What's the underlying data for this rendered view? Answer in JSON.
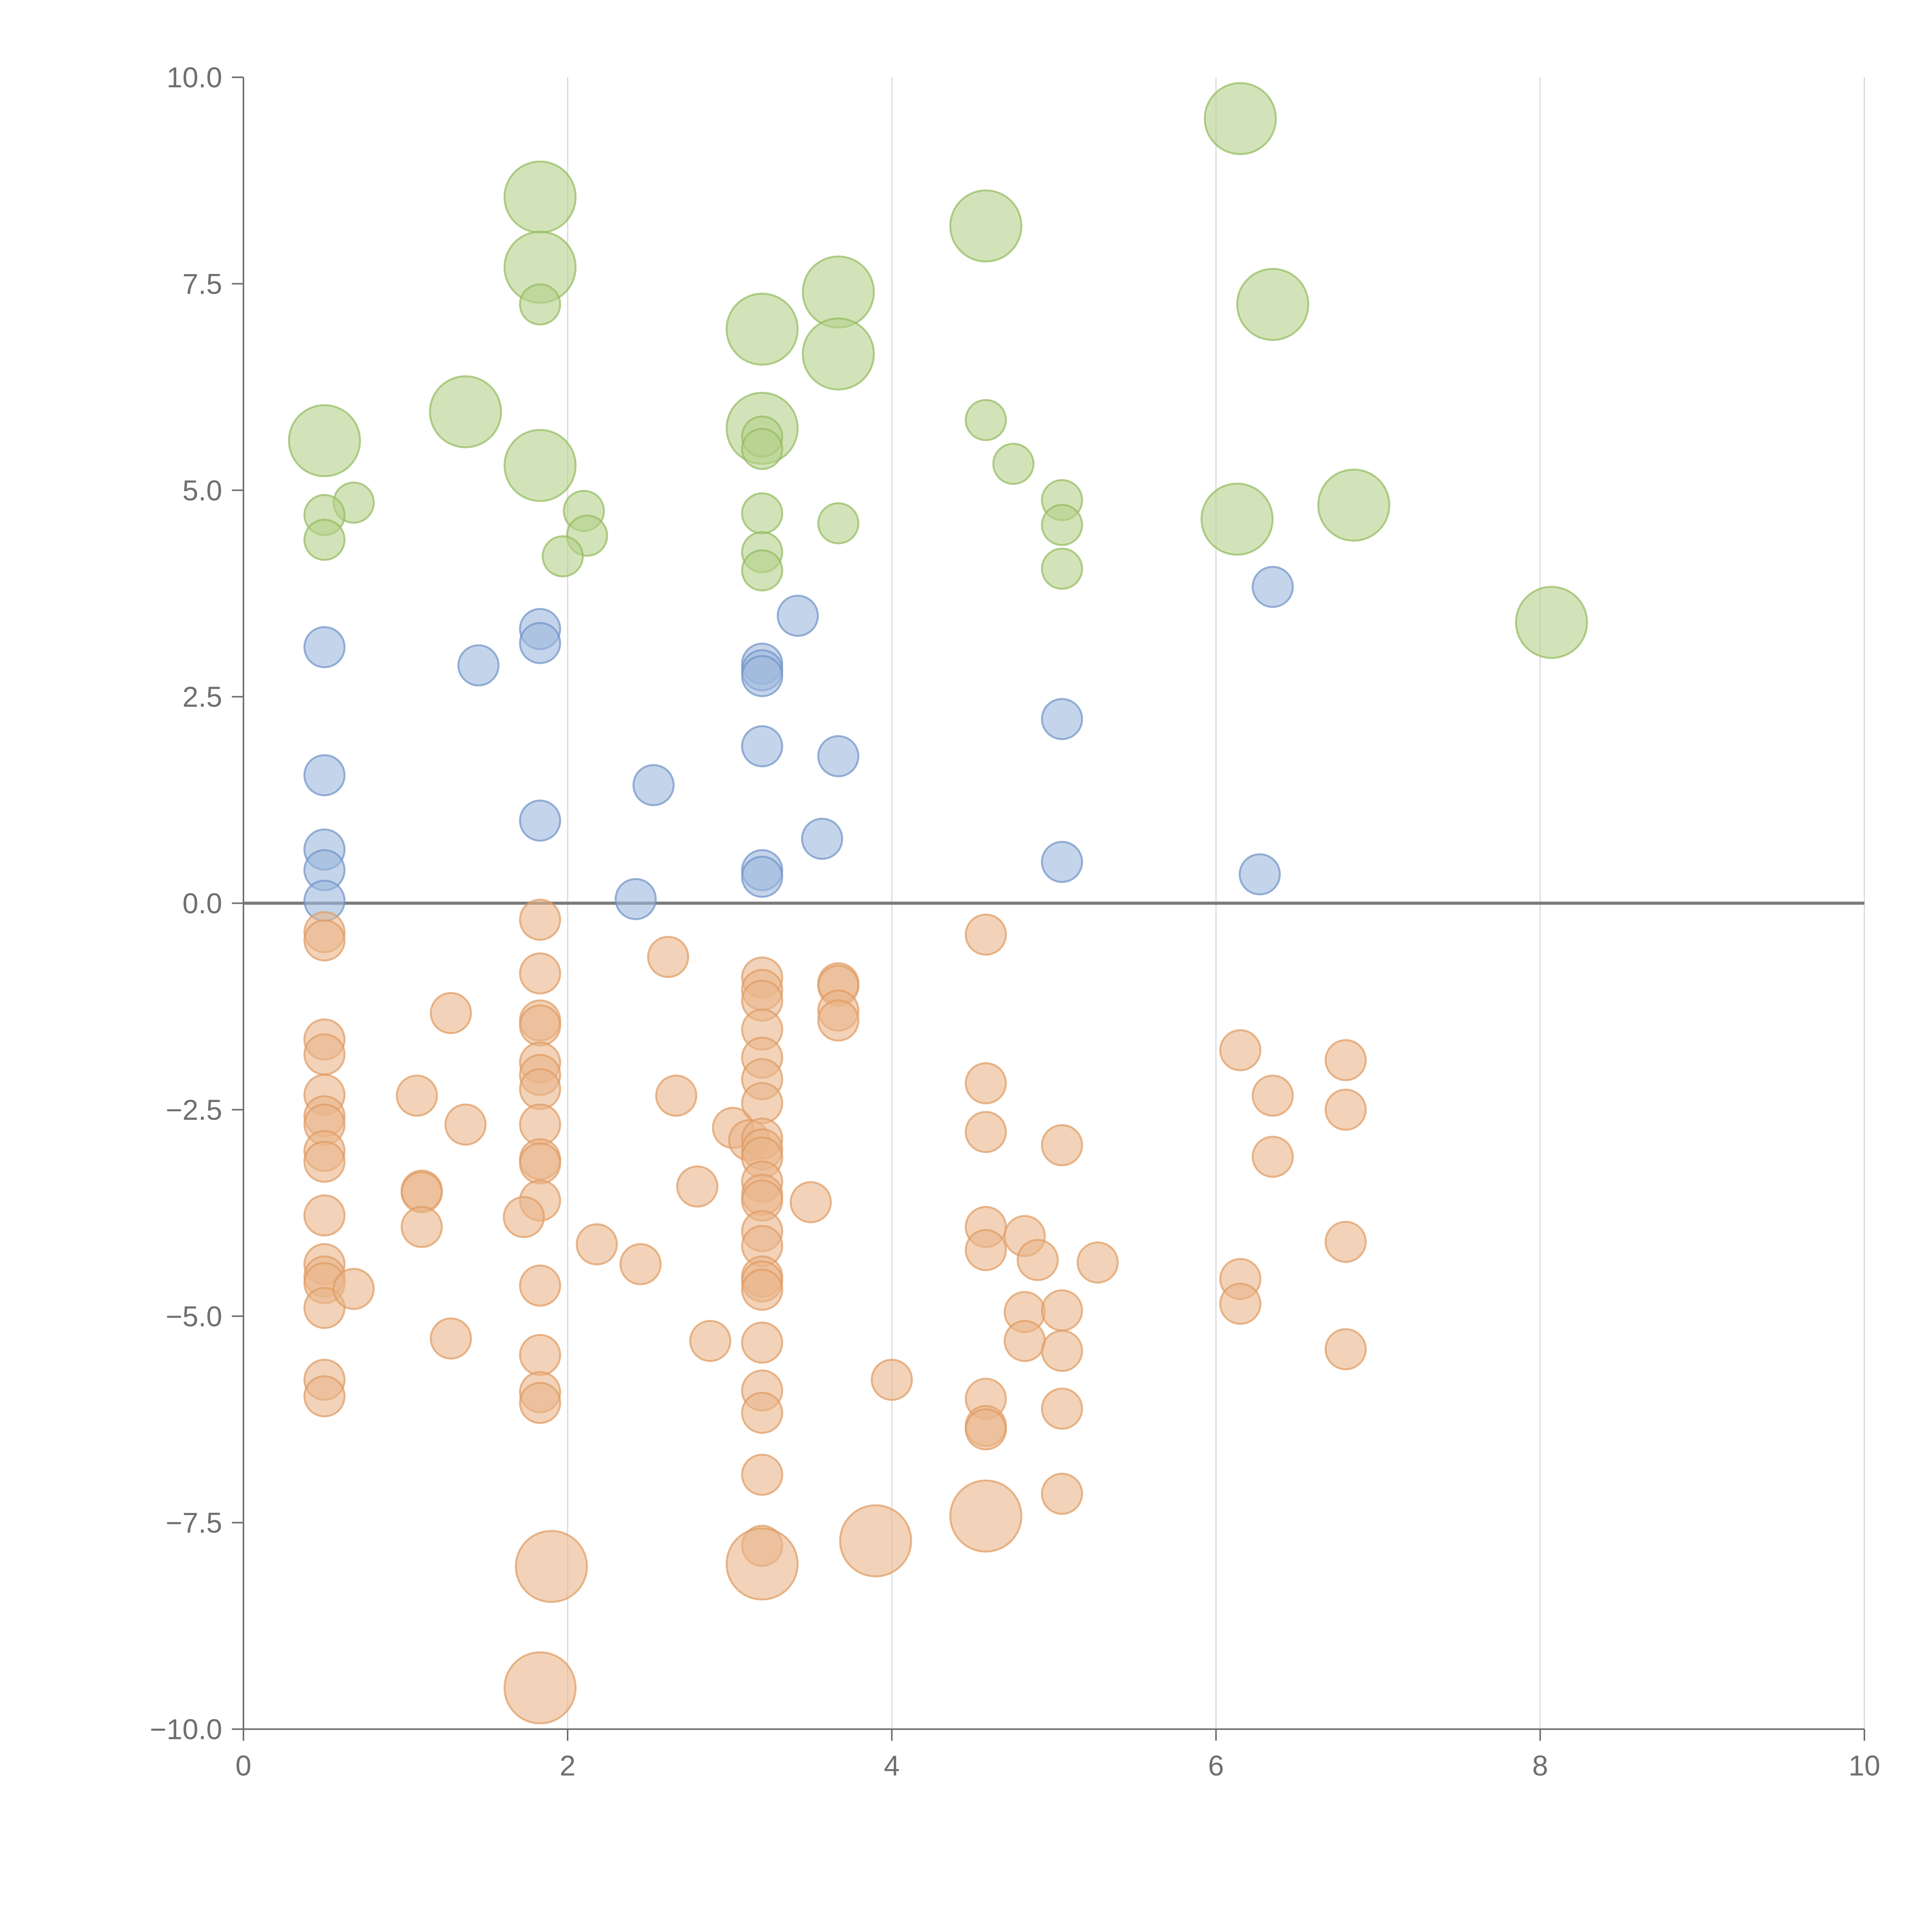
{
  "chart_data": {
    "type": "scatter",
    "xlim": [
      0,
      10
    ],
    "ylim": [
      -10,
      10
    ],
    "x_ticks": [
      "0",
      "2",
      "4",
      "6",
      "8",
      "10"
    ],
    "y_ticks": [
      "10.0",
      "7.5",
      "5.0",
      "2.5",
      "0.0",
      "−2.5",
      "−5.0",
      "−7.5",
      "−10.0"
    ],
    "x_tick_values": [
      0,
      2,
      4,
      6,
      8,
      10
    ],
    "y_tick_values": [
      10,
      7.5,
      5,
      2.5,
      0,
      -2.5,
      -5,
      -7.5,
      -10
    ],
    "grid": {
      "vertical": true,
      "horizontal": false
    },
    "zero_line": 0,
    "series": [
      {
        "color": "#b5d08a",
        "stroke": "#93ba5e",
        "points": [
          [
            6.15,
            9.5,
            3
          ],
          [
            1.83,
            8.55,
            3
          ],
          [
            4.58,
            8.2,
            3
          ],
          [
            1.83,
            7.7,
            3
          ],
          [
            1.83,
            7.25,
            1
          ],
          [
            3.67,
            7.4,
            3
          ],
          [
            6.35,
            7.25,
            3
          ],
          [
            3.2,
            6.95,
            3
          ],
          [
            3.67,
            6.65,
            3
          ],
          [
            1.37,
            5.95,
            3
          ],
          [
            0.5,
            5.6,
            3
          ],
          [
            3.2,
            5.75,
            3
          ],
          [
            3.2,
            5.65,
            1
          ],
          [
            3.2,
            5.5,
            1
          ],
          [
            4.58,
            5.85,
            1
          ],
          [
            4.75,
            5.32,
            1
          ],
          [
            1.83,
            5.3,
            3
          ],
          [
            0.68,
            4.85,
            1
          ],
          [
            0.5,
            4.7,
            1
          ],
          [
            0.5,
            4.4,
            1
          ],
          [
            2.1,
            4.75,
            1
          ],
          [
            2.12,
            4.45,
            1
          ],
          [
            1.97,
            4.2,
            1
          ],
          [
            3.2,
            4.72,
            1
          ],
          [
            3.2,
            4.25,
            1
          ],
          [
            3.2,
            4.03,
            1
          ],
          [
            3.67,
            4.6,
            1
          ],
          [
            5.05,
            4.88,
            1
          ],
          [
            5.05,
            4.58,
            1
          ],
          [
            5.05,
            4.05,
            1
          ],
          [
            6.13,
            4.65,
            3
          ],
          [
            6.85,
            4.82,
            3
          ],
          [
            8.07,
            3.4,
            3
          ]
        ]
      },
      {
        "color": "#9db7dc",
        "stroke": "#6f93c8",
        "points": [
          [
            0.5,
            3.1,
            1
          ],
          [
            0.5,
            1.55,
            1
          ],
          [
            0.5,
            0.65,
            1
          ],
          [
            0.5,
            0.4,
            1
          ],
          [
            0.5,
            0.03,
            1
          ],
          [
            1.45,
            2.88,
            1
          ],
          [
            1.83,
            3.32,
            1
          ],
          [
            1.83,
            3.15,
            1
          ],
          [
            1.83,
            1.0,
            1
          ],
          [
            2.42,
            0.05,
            1
          ],
          [
            2.53,
            1.43,
            1
          ],
          [
            3.2,
            2.9,
            1
          ],
          [
            3.2,
            2.82,
            1
          ],
          [
            3.2,
            2.75,
            1
          ],
          [
            3.2,
            1.9,
            1
          ],
          [
            3.2,
            0.4,
            1
          ],
          [
            3.2,
            0.32,
            1
          ],
          [
            3.42,
            3.48,
            1
          ],
          [
            3.57,
            0.78,
            1
          ],
          [
            3.67,
            1.78,
            1
          ],
          [
            5.05,
            2.23,
            1
          ],
          [
            5.05,
            0.5,
            1
          ],
          [
            6.27,
            0.35,
            1
          ],
          [
            6.35,
            3.83,
            1
          ]
        ]
      },
      {
        "color": "#eab58b",
        "stroke": "#e09a61",
        "points": [
          [
            0.5,
            -0.35,
            1
          ],
          [
            0.5,
            -0.45,
            1
          ],
          [
            0.5,
            -1.65,
            1
          ],
          [
            0.5,
            -1.83,
            1
          ],
          [
            0.5,
            -2.32,
            1
          ],
          [
            0.5,
            -2.58,
            1
          ],
          [
            0.5,
            -2.68,
            1
          ],
          [
            0.5,
            -3.0,
            1
          ],
          [
            0.5,
            -3.13,
            1
          ],
          [
            0.5,
            -3.78,
            1
          ],
          [
            0.5,
            -4.37,
            1
          ],
          [
            0.5,
            -4.52,
            1
          ],
          [
            0.5,
            -4.6,
            1
          ],
          [
            0.5,
            -4.9,
            1
          ],
          [
            0.5,
            -5.77,
            1
          ],
          [
            0.5,
            -5.97,
            1
          ],
          [
            0.68,
            -4.67,
            1
          ],
          [
            1.07,
            -2.33,
            1
          ],
          [
            1.1,
            -3.48,
            1
          ],
          [
            1.1,
            -3.5,
            1
          ],
          [
            1.1,
            -3.92,
            1
          ],
          [
            1.28,
            -1.33,
            1
          ],
          [
            1.28,
            -5.27,
            1
          ],
          [
            1.37,
            -2.68,
            1
          ],
          [
            1.83,
            -0.2,
            1
          ],
          [
            1.83,
            -0.85,
            1
          ],
          [
            1.83,
            -1.42,
            1
          ],
          [
            1.83,
            -1.48,
            1
          ],
          [
            1.83,
            -1.93,
            1
          ],
          [
            1.83,
            -2.08,
            1
          ],
          [
            1.83,
            -2.25,
            1
          ],
          [
            1.83,
            -2.68,
            1
          ],
          [
            1.83,
            -3.1,
            1
          ],
          [
            1.83,
            -3.15,
            1
          ],
          [
            1.83,
            -3.6,
            1
          ],
          [
            1.73,
            -3.8,
            1
          ],
          [
            1.83,
            -4.63,
            1
          ],
          [
            1.83,
            -5.47,
            1
          ],
          [
            1.83,
            -5.92,
            1
          ],
          [
            1.83,
            -6.05,
            1
          ],
          [
            1.9,
            -8.03,
            3
          ],
          [
            1.83,
            -9.5,
            3
          ],
          [
            2.18,
            -4.13,
            1
          ],
          [
            2.45,
            -4.37,
            1
          ],
          [
            2.62,
            -0.65,
            1
          ],
          [
            2.67,
            -2.33,
            1
          ],
          [
            2.8,
            -3.43,
            1
          ],
          [
            2.88,
            -5.3,
            1
          ],
          [
            3.02,
            -2.72,
            1
          ],
          [
            3.12,
            -2.87,
            1
          ],
          [
            3.2,
            -0.9,
            1
          ],
          [
            3.2,
            -1.05,
            1
          ],
          [
            3.2,
            -1.18,
            1
          ],
          [
            3.2,
            -1.53,
            1
          ],
          [
            3.2,
            -1.87,
            1
          ],
          [
            3.2,
            -2.13,
            1
          ],
          [
            3.2,
            -2.42,
            1
          ],
          [
            3.2,
            -2.85,
            1
          ],
          [
            3.2,
            -2.98,
            1
          ],
          [
            3.2,
            -3.08,
            1
          ],
          [
            3.2,
            -3.37,
            1
          ],
          [
            3.2,
            -3.53,
            1
          ],
          [
            3.2,
            -3.6,
            1
          ],
          [
            3.2,
            -3.97,
            1
          ],
          [
            3.2,
            -4.15,
            1
          ],
          [
            3.2,
            -4.52,
            1
          ],
          [
            3.2,
            -4.58,
            1
          ],
          [
            3.2,
            -4.68,
            1
          ],
          [
            3.2,
            -5.32,
            1
          ],
          [
            3.2,
            -5.9,
            1
          ],
          [
            3.2,
            -6.17,
            1
          ],
          [
            3.2,
            -6.92,
            1
          ],
          [
            3.2,
            -7.78,
            1
          ],
          [
            3.2,
            -8.0,
            3
          ],
          [
            3.5,
            -3.62,
            1
          ],
          [
            3.67,
            -0.97,
            1
          ],
          [
            3.67,
            -1.0,
            1
          ],
          [
            3.67,
            -1.3,
            1
          ],
          [
            3.67,
            -1.42,
            1
          ],
          [
            3.9,
            -7.72,
            3
          ],
          [
            4.0,
            -5.77,
            1
          ],
          [
            4.58,
            -0.38,
            1
          ],
          [
            4.58,
            -2.18,
            1
          ],
          [
            4.58,
            -2.77,
            1
          ],
          [
            4.58,
            -3.92,
            1
          ],
          [
            4.58,
            -4.2,
            1
          ],
          [
            4.58,
            -6.0,
            1
          ],
          [
            4.58,
            -6.33,
            1
          ],
          [
            4.58,
            -6.37,
            1
          ],
          [
            4.58,
            -7.42,
            3
          ],
          [
            4.82,
            -4.03,
            1
          ],
          [
            4.82,
            -4.95,
            1
          ],
          [
            4.82,
            -5.3,
            1
          ],
          [
            4.9,
            -4.32,
            1
          ],
          [
            5.05,
            -2.93,
            1
          ],
          [
            5.05,
            -4.93,
            1
          ],
          [
            5.05,
            -5.42,
            1
          ],
          [
            5.05,
            -6.12,
            1
          ],
          [
            5.05,
            -7.15,
            1
          ],
          [
            5.27,
            -4.35,
            1
          ],
          [
            6.15,
            -1.78,
            1
          ],
          [
            6.15,
            -4.55,
            1
          ],
          [
            6.15,
            -4.85,
            1
          ],
          [
            6.35,
            -2.33,
            1
          ],
          [
            6.35,
            -3.07,
            1
          ],
          [
            6.8,
            -1.9,
            1
          ],
          [
            6.8,
            -2.5,
            1
          ],
          [
            6.8,
            -4.1,
            1
          ],
          [
            6.8,
            -5.4,
            1
          ]
        ]
      }
    ]
  }
}
